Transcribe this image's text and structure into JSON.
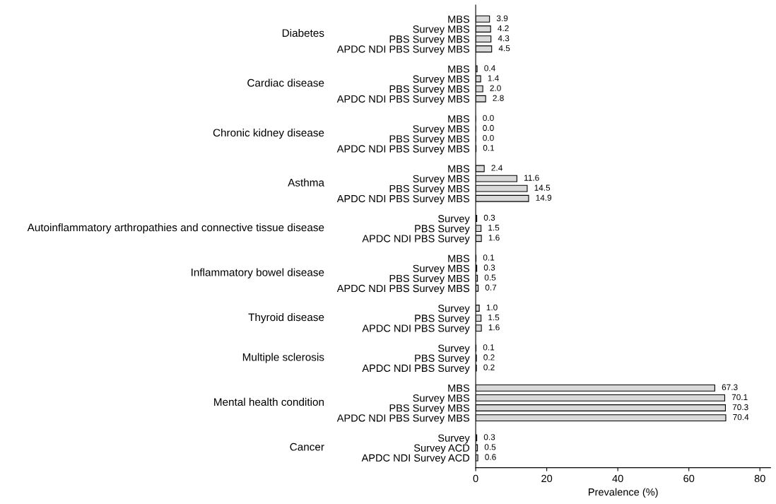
{
  "chart_data": {
    "type": "bar",
    "orientation": "horizontal",
    "categories": [
      "MBS",
      "Survey MBS",
      "PBS Survey MBS",
      "APDC NDI PBS Survey MBS",
      null,
      "MBS",
      "Survey MBS",
      "PBS Survey MBS",
      "APDC NDI PBS Survey MBS",
      null,
      "MBS",
      "Survey MBS",
      "PBS Survey MBS",
      "APDC NDI PBS Survey MBS",
      null,
      "MBS",
      "Survey MBS",
      "PBS Survey MBS",
      "APDC NDI PBS Survey MBS",
      null,
      "Survey",
      "PBS Survey",
      "APDC NDI PBS Survey",
      null,
      "MBS",
      "Survey MBS",
      "PBS Survey MBS",
      "APDC NDI PBS Survey MBS",
      null,
      "Survey",
      "PBS Survey",
      "APDC NDI PBS Survey",
      null,
      "Survey",
      "PBS Survey",
      "APDC NDI PBS Survey",
      null,
      "MBS",
      "Survey MBS",
      "PBS Survey MBS",
      "APDC NDI PBS Survey MBS",
      null,
      "Survey",
      "Survey ACD",
      "APDC NDI Survey ACD"
    ],
    "values": [
      3.9,
      4.2,
      4.3,
      4.5,
      null,
      0.4,
      1.4,
      2.0,
      2.8,
      null,
      0.0,
      0.0,
      0.0,
      0.1,
      null,
      2.4,
      11.6,
      14.5,
      14.9,
      null,
      0.3,
      1.5,
      1.6,
      null,
      0.1,
      0.3,
      0.5,
      0.7,
      null,
      1.0,
      1.5,
      1.6,
      null,
      0.1,
      0.2,
      0.2,
      null,
      67.3,
      70.1,
      70.3,
      70.4,
      null,
      0.3,
      0.5,
      0.6
    ],
    "annotations": [
      "Diabetes",
      "Cardiac disease",
      "Chronic kidney disease",
      "Asthma",
      "Autoinflammatory arthropathies and connective tissue disease",
      "Inflammatory bowel disease",
      "Thyroid disease",
      "Multiple sclerosis",
      "Mental health condition",
      "Cancer"
    ],
    "value_labels": [
      "3.9",
      "4.2",
      "4.3",
      "4.5",
      null,
      "0.4",
      "1.4",
      "2.0",
      "2.8",
      null,
      "0.0",
      "0.0",
      "0.0",
      "0.1",
      null,
      "2.4",
      "11.6",
      "14.5",
      "14.9",
      null,
      "0.3",
      "1.5",
      "1.6",
      null,
      "0.1",
      "0.3",
      "0.5",
      "0.7",
      null,
      "1.0",
      "1.5",
      "1.6",
      null,
      "0.1",
      "0.2",
      "0.2",
      null,
      "67.3",
      "70.1",
      "70.3",
      "70.4",
      null,
      "0.3",
      "0.5",
      "0.6"
    ],
    "color": "#d9d9d9",
    "xlim": [
      0,
      83
    ],
    "xticks": [
      0,
      20,
      40,
      60,
      80
    ],
    "xlabel": "Prevalence (%)"
  }
}
